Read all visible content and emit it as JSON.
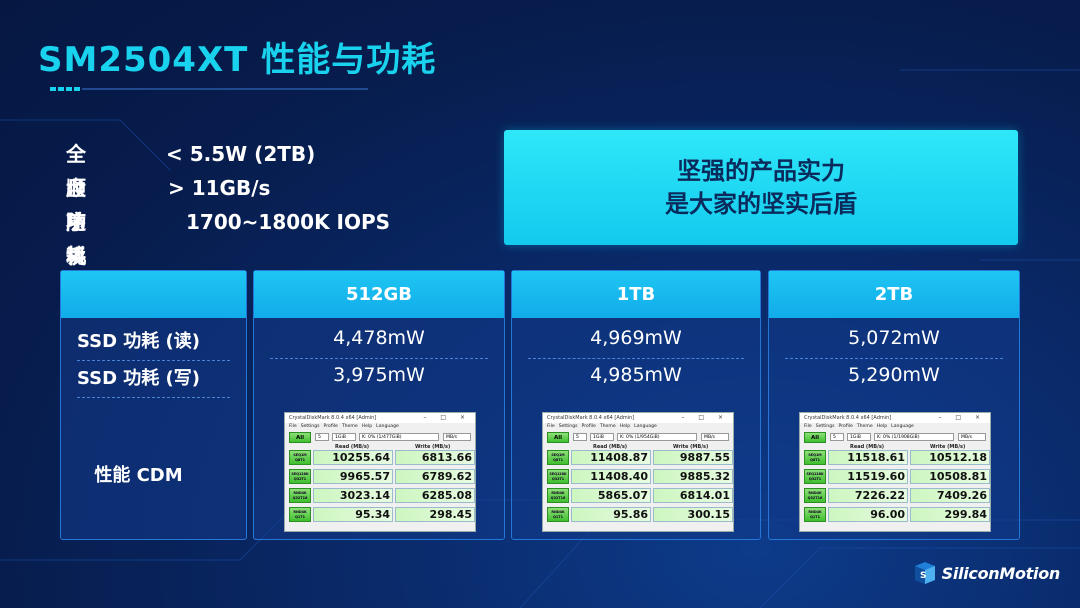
{
  "title": "SM2504XT 性能与功耗",
  "specs": [
    {
      "label": "全盘功耗",
      "value": "< 5.5W (2TB)"
    },
    {
      "label": "顺序读",
      "value": "> 11GB/s"
    },
    {
      "label": "随机读",
      "value": "1700~1800K IOPS"
    }
  ],
  "slogan": {
    "line1": "坚强的产品实力",
    "line2": "是大家的坚实后盾"
  },
  "table": {
    "row_labels": {
      "read_power": "SSD 功耗 (读)",
      "write_power": "SSD 功耗 (写)",
      "cdm": "性能 CDM"
    },
    "columns": [
      {
        "header": "512GB",
        "read_power": "4,478mW",
        "write_power": "3,975mW",
        "cdm": {
          "drive": "K: 0% (1/477GiB)",
          "rows": [
            {
              "label1": "SEQ1M",
              "label2": "Q8T1",
              "read": "10255.64",
              "write": "6813.66"
            },
            {
              "label1": "SEQ128K",
              "label2": "Q32T1",
              "read": "9965.57",
              "write": "6789.62"
            },
            {
              "label1": "RND4K",
              "label2": "Q32T16",
              "read": "3023.14",
              "write": "6285.08"
            },
            {
              "label1": "RND4K",
              "label2": "Q1T1",
              "read": "95.34",
              "write": "298.45"
            }
          ]
        }
      },
      {
        "header": "1TB",
        "read_power": "4,969mW",
        "write_power": "4,985mW",
        "cdm": {
          "drive": "K: 0% (1/954GiB)",
          "rows": [
            {
              "label1": "SEQ1M",
              "label2": "Q8T1",
              "read": "11408.87",
              "write": "9887.55"
            },
            {
              "label1": "SEQ128K",
              "label2": "Q32T1",
              "read": "11408.40",
              "write": "9885.32"
            },
            {
              "label1": "RND4K",
              "label2": "Q32T16",
              "read": "5865.07",
              "write": "6814.01"
            },
            {
              "label1": "RND4K",
              "label2": "Q1T1",
              "read": "95.86",
              "write": "300.15"
            }
          ]
        }
      },
      {
        "header": "2TB",
        "read_power": "5,072mW",
        "write_power": "5,290mW",
        "cdm": {
          "drive": "K: 0% (1/1908GiB)",
          "rows": [
            {
              "label1": "SEQ1M",
              "label2": "Q8T1",
              "read": "11518.61",
              "write": "10512.18"
            },
            {
              "label1": "SEQ128K",
              "label2": "Q32T1",
              "read": "11519.60",
              "write": "10508.81"
            },
            {
              "label1": "RND4K",
              "label2": "Q32T16",
              "read": "7226.22",
              "write": "7409.26"
            },
            {
              "label1": "RND4K",
              "label2": "Q1T1",
              "read": "96.00",
              "write": "299.84"
            }
          ]
        }
      }
    ]
  },
  "cdm_common": {
    "window_title": "CrystalDiskMark 8.0.4 x64 [Admin]",
    "window_controls": "–  □  ×",
    "menu": [
      "File",
      "Settings",
      "Profile",
      "Theme",
      "Help",
      "Language"
    ],
    "all_button": "All",
    "count": "5",
    "size": "1GiB",
    "unit": "MB/s",
    "read_header": "Read (MB/s)",
    "write_header": "Write (MB/s)"
  },
  "logo": {
    "text": "SiliconMotion"
  },
  "colors": {
    "accent": "#19d3ee",
    "background": "#071d4e",
    "panel_header": "#13b4ec"
  }
}
